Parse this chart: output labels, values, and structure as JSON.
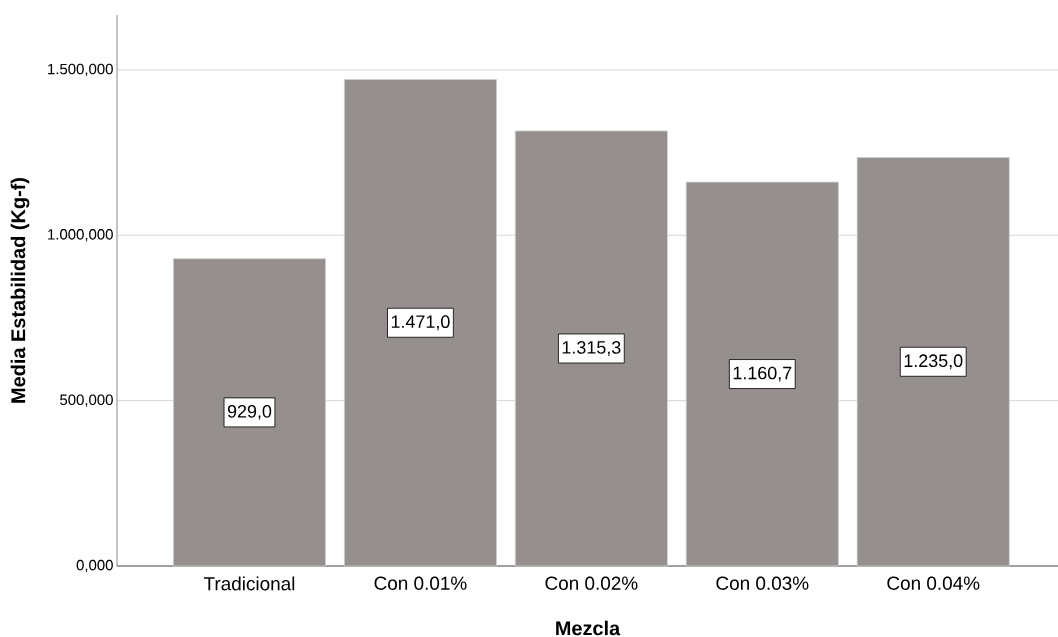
{
  "chart_data": {
    "type": "bar",
    "xlabel": "Mezcla",
    "ylabel": "Media Estabilidad (Kg-f)",
    "categories": [
      "Tradicional",
      "Con 0.01%",
      "Con 0.02%",
      "Con 0.03%",
      "Con 0.04%"
    ],
    "values": [
      929.0,
      1471.0,
      1315.3,
      1160.7,
      1235.0
    ],
    "value_labels": [
      "929,0",
      "1.471,0",
      "1.315,3",
      "1.160,7",
      "1.235,0"
    ],
    "color": "#958f8e",
    "ylim": [
      0,
      1666
    ],
    "yticks": [
      {
        "value": 0,
        "label": "0,000"
      },
      {
        "value": 500,
        "label": "500,000"
      },
      {
        "value": 1000,
        "label": "1.000,000"
      },
      {
        "value": 1500,
        "label": "1.500,000"
      }
    ],
    "grid": "y"
  }
}
